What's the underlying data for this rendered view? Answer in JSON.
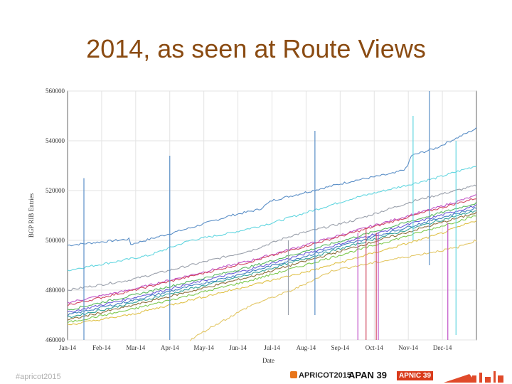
{
  "slide": {
    "title": "2014, as seen at Route Views",
    "footer_left": "#apricot2015",
    "logos": {
      "apricot": "APRICOT2015",
      "apan": "APAN 39",
      "apnic": "APNIC 39"
    }
  },
  "chart_data": {
    "type": "line",
    "title": "",
    "xlabel": "Date",
    "ylabel": "BGP RIB Entries",
    "x_ticks": [
      "Jan-14",
      "Feb-14",
      "Mar-14",
      "Apr-14",
      "May-14",
      "Jun-14",
      "Jul-14",
      "Aug-14",
      "Sep-14",
      "Oct-14",
      "Nov-14",
      "Dec-14"
    ],
    "y_ticks": [
      "460000",
      "480000",
      "500000",
      "520000",
      "540000",
      "560000"
    ],
    "xlim": [
      "2014-01-01",
      "2014-12-31"
    ],
    "ylim": [
      460000,
      560000
    ],
    "grid": true,
    "legend": "none",
    "series": [
      {
        "color": "#5b8fc7",
        "values": [
          [
            0,
            498000
          ],
          [
            0.15,
            500500
          ],
          [
            0.13,
            500500
          ],
          [
            0.135,
            497500
          ],
          [
            0.3,
            505000
          ],
          [
            0.4,
            510000
          ],
          [
            0.47,
            512500
          ],
          [
            0.5,
            516000
          ],
          [
            0.6,
            520000
          ],
          [
            0.7,
            524000
          ],
          [
            0.8,
            527000
          ],
          [
            0.83,
            529000
          ],
          [
            0.84,
            534000
          ],
          [
            0.9,
            537000
          ],
          [
            0.95,
            541000
          ],
          [
            1,
            545000
          ]
        ]
      },
      {
        "color": "#63d6e0",
        "values": [
          [
            0,
            488000
          ],
          [
            0.12,
            491500
          ],
          [
            0.2,
            494000
          ],
          [
            0.3,
            500000
          ],
          [
            0.4,
            503000
          ],
          [
            0.5,
            507000
          ],
          [
            0.6,
            512000
          ],
          [
            0.7,
            517000
          ],
          [
            0.8,
            521000
          ],
          [
            0.9,
            525000
          ],
          [
            1,
            530000
          ]
        ]
      },
      {
        "color": "#9aa0ab",
        "values": [
          [
            0,
            480000
          ],
          [
            0.15,
            484000
          ],
          [
            0.3,
            490000
          ],
          [
            0.45,
            496000
          ],
          [
            0.55,
            502000
          ],
          [
            0.7,
            508000
          ],
          [
            0.85,
            516000
          ],
          [
            1,
            522000
          ]
        ]
      },
      {
        "color": "#c052c7",
        "values": [
          [
            0,
            475000
          ],
          [
            0.15,
            480000
          ],
          [
            0.3,
            486000
          ],
          [
            0.45,
            492000
          ],
          [
            0.6,
            499000
          ],
          [
            0.75,
            506000
          ],
          [
            0.9,
            513000
          ],
          [
            1,
            518000
          ]
        ]
      },
      {
        "color": "#d24a63",
        "values": [
          [
            0,
            474000
          ],
          [
            0.15,
            479500
          ],
          [
            0.3,
            485500
          ],
          [
            0.45,
            491500
          ],
          [
            0.6,
            498500
          ],
          [
            0.75,
            505500
          ],
          [
            0.9,
            512500
          ],
          [
            1,
            517000
          ]
        ]
      },
      {
        "color": "#58b85c",
        "values": [
          [
            0,
            472000
          ],
          [
            0.15,
            477500
          ],
          [
            0.3,
            483500
          ],
          [
            0.45,
            489500
          ],
          [
            0.6,
            496500
          ],
          [
            0.75,
            503500
          ],
          [
            0.9,
            510500
          ],
          [
            1,
            515000
          ]
        ]
      },
      {
        "color": "#6a5bd8",
        "values": [
          [
            0,
            471000
          ],
          [
            0.15,
            476500
          ],
          [
            0.3,
            482500
          ],
          [
            0.45,
            488500
          ],
          [
            0.6,
            495500
          ],
          [
            0.75,
            502500
          ],
          [
            0.9,
            509500
          ],
          [
            1,
            514000
          ]
        ]
      },
      {
        "color": "#3f7fbf",
        "values": [
          [
            0,
            470000
          ],
          [
            0.15,
            475500
          ],
          [
            0.3,
            481500
          ],
          [
            0.45,
            487500
          ],
          [
            0.6,
            494500
          ],
          [
            0.75,
            501500
          ],
          [
            0.9,
            508500
          ],
          [
            1,
            513000
          ]
        ]
      },
      {
        "color": "#34a39b",
        "values": [
          [
            0,
            469000
          ],
          [
            0.15,
            474500
          ],
          [
            0.3,
            480500
          ],
          [
            0.45,
            486500
          ],
          [
            0.6,
            493500
          ],
          [
            0.75,
            500500
          ],
          [
            0.9,
            507500
          ],
          [
            1,
            512000
          ]
        ]
      },
      {
        "color": "#8c6d3a",
        "values": [
          [
            0,
            468000
          ],
          [
            0.15,
            473500
          ],
          [
            0.3,
            479500
          ],
          [
            0.45,
            485500
          ],
          [
            0.6,
            492500
          ],
          [
            0.75,
            499500
          ],
          [
            0.9,
            506500
          ],
          [
            1,
            511000
          ]
        ]
      },
      {
        "color": "#7fc94f",
        "values": [
          [
            0,
            467000
          ],
          [
            0.15,
            472000
          ],
          [
            0.3,
            478000
          ],
          [
            0.45,
            484000
          ],
          [
            0.6,
            491000
          ],
          [
            0.75,
            498000
          ],
          [
            0.9,
            505000
          ],
          [
            1,
            510000
          ]
        ]
      },
      {
        "color": "#e0c24a",
        "values": [
          [
            0,
            466000
          ],
          [
            0.15,
            470000
          ],
          [
            0.3,
            476000
          ],
          [
            0.45,
            482000
          ],
          [
            0.6,
            488000
          ],
          [
            0.75,
            495000
          ],
          [
            0.9,
            502000
          ],
          [
            1,
            508000
          ]
        ]
      },
      {
        "color": "#e3c766",
        "values": [
          [
            0.3,
            460000
          ],
          [
            0.35,
            465000
          ],
          [
            0.45,
            474000
          ],
          [
            0.55,
            480000
          ],
          [
            0.65,
            488000
          ],
          [
            0.75,
            491000
          ],
          [
            0.85,
            494000
          ],
          [
            0.95,
            497000
          ],
          [
            1,
            500000
          ]
        ]
      }
    ],
    "spikes": [
      {
        "x": 0.04,
        "y0": 460000,
        "y1": 525000,
        "color": "#5b8fc7"
      },
      {
        "x": 0.25,
        "y0": 460000,
        "y1": 534000,
        "color": "#5b8fc7"
      },
      {
        "x": 0.605,
        "y0": 470000,
        "y1": 544000,
        "color": "#5b8fc7"
      },
      {
        "x": 0.885,
        "y0": 490000,
        "y1": 560000,
        "color": "#5b8fc7"
      },
      {
        "x": 0.845,
        "y0": 500000,
        "y1": 550000,
        "color": "#63d6e0"
      },
      {
        "x": 0.95,
        "y0": 462000,
        "y1": 540000,
        "color": "#63d6e0"
      },
      {
        "x": 0.73,
        "y0": 460000,
        "y1": 505000,
        "color": "#d24a63"
      },
      {
        "x": 0.755,
        "y0": 460000,
        "y1": 503000,
        "color": "#d24a63"
      },
      {
        "x": 0.71,
        "y0": 460000,
        "y1": 503000,
        "color": "#c052c7"
      },
      {
        "x": 0.76,
        "y0": 460000,
        "y1": 503000,
        "color": "#c052c7"
      },
      {
        "x": 0.93,
        "y0": 460000,
        "y1": 507000,
        "color": "#c052c7"
      },
      {
        "x": 0.54,
        "y0": 470000,
        "y1": 500000,
        "color": "#9aa0ab"
      }
    ]
  }
}
